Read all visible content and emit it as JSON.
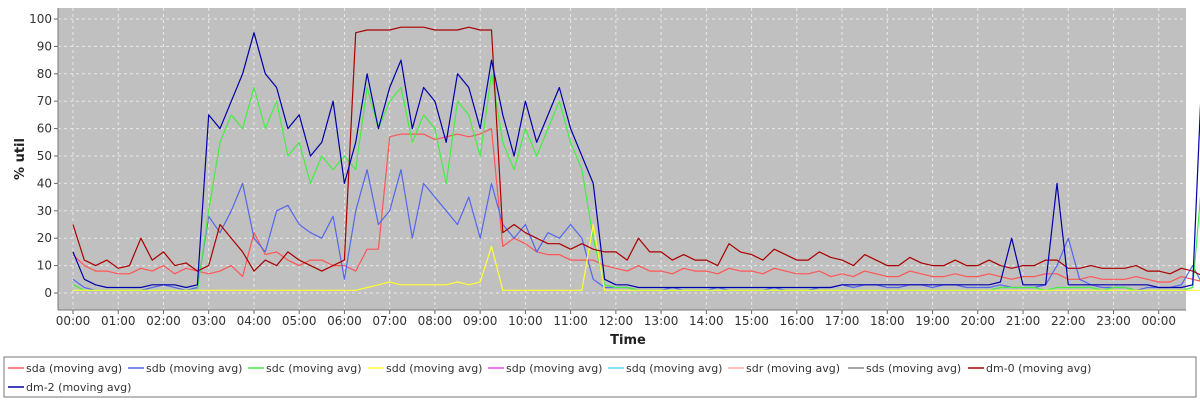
{
  "chart_data": {
    "type": "line",
    "title": "",
    "xlabel": "Time",
    "ylabel": "% util",
    "ylim": [
      0,
      100
    ],
    "xlim": [
      0,
      24.3
    ],
    "grid": true,
    "legend_position": "bottom",
    "x_tick_labels": [
      "00:00",
      "01:00",
      "02:00",
      "03:00",
      "04:00",
      "05:00",
      "06:00",
      "07:00",
      "08:00",
      "09:00",
      "10:00",
      "11:00",
      "12:00",
      "13:00",
      "14:00",
      "15:00",
      "16:00",
      "17:00",
      "18:00",
      "19:00",
      "20:00",
      "21:00",
      "22:00",
      "23:00",
      "00:00"
    ],
    "y_ticks": [
      0,
      10,
      20,
      30,
      40,
      50,
      60,
      70,
      80,
      90,
      100
    ],
    "x_step_hours": 0.25,
    "series": [
      {
        "name": "sda (moving avg)",
        "color": "#ff5555",
        "values": [
          14,
          10,
          8,
          8,
          7,
          7,
          9,
          8,
          10,
          7,
          9,
          8,
          7,
          8,
          10,
          6,
          22,
          14,
          15,
          12,
          10,
          12,
          12,
          10,
          10,
          8,
          16,
          16,
          57,
          58,
          58,
          58,
          56,
          57,
          58,
          57,
          58,
          60,
          17,
          20,
          18,
          15,
          14,
          14,
          12,
          12,
          12,
          10,
          9,
          8,
          10,
          8,
          8,
          7,
          9,
          8,
          8,
          7,
          9,
          8,
          8,
          7,
          9,
          8,
          7,
          7,
          8,
          6,
          7,
          6,
          8,
          7,
          6,
          6,
          8,
          7,
          6,
          6,
          7,
          6,
          6,
          7,
          6,
          5,
          6,
          6,
          7,
          7,
          5,
          5,
          6,
          5,
          5,
          5,
          6,
          5,
          4,
          4,
          6,
          5,
          4,
          5
        ]
      },
      {
        "name": "sdb (moving avg)",
        "color": "#5566ee",
        "values": [
          5,
          2,
          1,
          1,
          1,
          1,
          1,
          2,
          3,
          2,
          1,
          2,
          28,
          22,
          30,
          40,
          20,
          15,
          30,
          32,
          25,
          22,
          20,
          28,
          5,
          30,
          45,
          25,
          30,
          45,
          20,
          40,
          35,
          30,
          25,
          35,
          20,
          40,
          25,
          20,
          25,
          15,
          22,
          20,
          25,
          20,
          5,
          2,
          2,
          2,
          1,
          1,
          1,
          2,
          1,
          1,
          1,
          2,
          1,
          1,
          1,
          1,
          2,
          1,
          1,
          1,
          2,
          2,
          3,
          2,
          3,
          3,
          2,
          2,
          3,
          3,
          2,
          3,
          3,
          2,
          2,
          2,
          3,
          2,
          2,
          2,
          3,
          10,
          20,
          5,
          3,
          2,
          2,
          2,
          1,
          2,
          2,
          2,
          3,
          10,
          2,
          2
        ]
      },
      {
        "name": "sdc (moving avg)",
        "color": "#44ee44",
        "values": [
          3,
          1,
          1,
          1,
          1,
          1,
          1,
          1,
          1,
          1,
          1,
          1,
          30,
          55,
          65,
          60,
          75,
          60,
          70,
          50,
          55,
          40,
          50,
          45,
          50,
          45,
          75,
          60,
          70,
          75,
          55,
          65,
          60,
          40,
          70,
          65,
          50,
          80,
          55,
          45,
          60,
          50,
          60,
          70,
          55,
          45,
          20,
          3,
          2,
          2,
          1,
          1,
          1,
          1,
          1,
          1,
          1,
          1,
          1,
          1,
          1,
          1,
          1,
          1,
          1,
          1,
          1,
          1,
          1,
          1,
          1,
          1,
          1,
          1,
          1,
          1,
          1,
          1,
          1,
          1,
          1,
          1,
          2,
          2,
          2,
          2,
          1,
          2,
          2,
          2,
          2,
          1,
          2,
          2,
          1,
          1,
          1,
          1,
          1,
          2,
          50,
          30
        ]
      },
      {
        "name": "sdd (moving avg)",
        "color": "#ffff33",
        "values": [
          1,
          1,
          1,
          1,
          1,
          1,
          1,
          1,
          1,
          1,
          1,
          1,
          1,
          1,
          1,
          1,
          1,
          1,
          1,
          1,
          1,
          1,
          1,
          1,
          1,
          1,
          2,
          3,
          4,
          3,
          3,
          3,
          3,
          3,
          4,
          3,
          4,
          17,
          1,
          1,
          1,
          1,
          1,
          1,
          1,
          1,
          25,
          1,
          1,
          1,
          1,
          1,
          1,
          1,
          1,
          1,
          1,
          1,
          1,
          1,
          1,
          1,
          1,
          1,
          1,
          1,
          1,
          1,
          1,
          1,
          1,
          1,
          1,
          1,
          1,
          1,
          1,
          1,
          1,
          1,
          1,
          1,
          1,
          1,
          1,
          1,
          1,
          1,
          1,
          1,
          1,
          1,
          1,
          1,
          1,
          1,
          1,
          1,
          1,
          1,
          1,
          1
        ]
      },
      {
        "name": "sdp (moving avg)",
        "color": "#ee44ee",
        "values": []
      },
      {
        "name": "sdq (moving avg)",
        "color": "#55ddee",
        "values": []
      },
      {
        "name": "sdr (moving avg)",
        "color": "#ffaaaa",
        "values": []
      },
      {
        "name": "sds (moving avg)",
        "color": "#888888",
        "values": []
      },
      {
        "name": "dm-0 (moving avg)",
        "color": "#aa0000",
        "values": [
          25,
          12,
          10,
          12,
          9,
          10,
          20,
          12,
          15,
          10,
          11,
          8,
          10,
          25,
          20,
          15,
          8,
          12,
          10,
          15,
          12,
          10,
          8,
          10,
          12,
          95,
          96,
          96,
          96,
          97,
          97,
          97,
          96,
          96,
          96,
          97,
          96,
          96,
          22,
          25,
          22,
          20,
          18,
          18,
          16,
          18,
          16,
          15,
          15,
          12,
          20,
          15,
          15,
          12,
          14,
          12,
          12,
          10,
          18,
          15,
          14,
          12,
          16,
          14,
          12,
          12,
          15,
          13,
          12,
          10,
          14,
          12,
          10,
          10,
          13,
          11,
          10,
          10,
          12,
          10,
          10,
          12,
          10,
          9,
          10,
          10,
          12,
          12,
          9,
          9,
          10,
          9,
          9,
          9,
          10,
          8,
          8,
          7,
          9,
          8,
          6,
          15
        ]
      },
      {
        "name": "dm-2 (moving avg)",
        "color": "#0000aa",
        "values": [
          15,
          5,
          3,
          2,
          2,
          2,
          2,
          3,
          3,
          3,
          2,
          3,
          65,
          60,
          70,
          80,
          95,
          80,
          75,
          60,
          65,
          50,
          55,
          70,
          40,
          55,
          80,
          60,
          75,
          85,
          60,
          75,
          70,
          55,
          80,
          75,
          60,
          85,
          65,
          50,
          70,
          55,
          65,
          75,
          60,
          50,
          40,
          5,
          3,
          3,
          2,
          2,
          2,
          2,
          2,
          2,
          2,
          2,
          2,
          2,
          2,
          2,
          2,
          2,
          2,
          2,
          2,
          2,
          3,
          3,
          3,
          3,
          3,
          3,
          3,
          3,
          3,
          3,
          3,
          3,
          3,
          3,
          4,
          20,
          3,
          3,
          3,
          40,
          3,
          3,
          3,
          3,
          3,
          3,
          3,
          3,
          2,
          2,
          2,
          3,
          98,
          60
        ]
      }
    ]
  }
}
